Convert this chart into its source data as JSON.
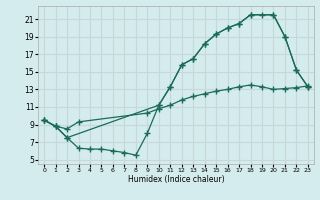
{
  "xlabel": "Humidex (Indice chaleur)",
  "bg_color": "#d4ecee",
  "grid_color": "#c8d8da",
  "line_color": "#1a6b5a",
  "xlim": [
    -0.5,
    23.5
  ],
  "ylim": [
    4.5,
    22.5
  ],
  "yticks": [
    5,
    7,
    9,
    11,
    13,
    15,
    17,
    19,
    21
  ],
  "xticks": [
    0,
    1,
    2,
    3,
    4,
    5,
    6,
    7,
    8,
    9,
    10,
    11,
    12,
    13,
    14,
    15,
    16,
    17,
    18,
    19,
    20,
    21,
    22,
    23
  ],
  "line1_x": [
    0,
    1,
    2,
    10,
    11,
    12,
    13,
    14,
    15,
    16,
    17,
    18,
    20,
    21,
    22,
    23
  ],
  "line1_y": [
    9.5,
    8.8,
    7.5,
    11.2,
    13.3,
    15.8,
    16.5,
    18.2,
    19.3,
    20.0,
    20.5,
    21.5,
    21.5,
    19.0,
    15.2,
    13.3
  ],
  "line2_x": [
    0,
    1,
    2,
    3,
    9,
    10,
    11,
    12,
    13,
    14,
    15,
    16,
    17,
    18,
    19,
    20,
    21,
    22,
    23
  ],
  "line2_y": [
    9.5,
    8.8,
    8.5,
    9.3,
    10.3,
    10.8,
    11.2,
    11.8,
    12.2,
    12.5,
    12.8,
    13.0,
    13.3,
    13.5,
    13.3,
    13.0,
    13.1,
    13.2,
    13.4
  ],
  "line3_x": [
    0,
    1,
    2,
    3,
    4,
    5,
    6,
    7,
    8,
    9,
    10,
    11,
    12,
    13,
    14,
    15,
    16,
    17,
    18,
    19,
    20,
    21,
    22,
    23
  ],
  "line3_y": [
    9.5,
    8.8,
    7.5,
    6.3,
    6.2,
    6.2,
    6.0,
    5.8,
    5.5,
    8.0,
    11.2,
    13.3,
    15.8,
    16.5,
    18.2,
    19.3,
    20.0,
    20.5,
    21.5,
    21.5,
    21.5,
    19.0,
    15.2,
    13.3
  ]
}
